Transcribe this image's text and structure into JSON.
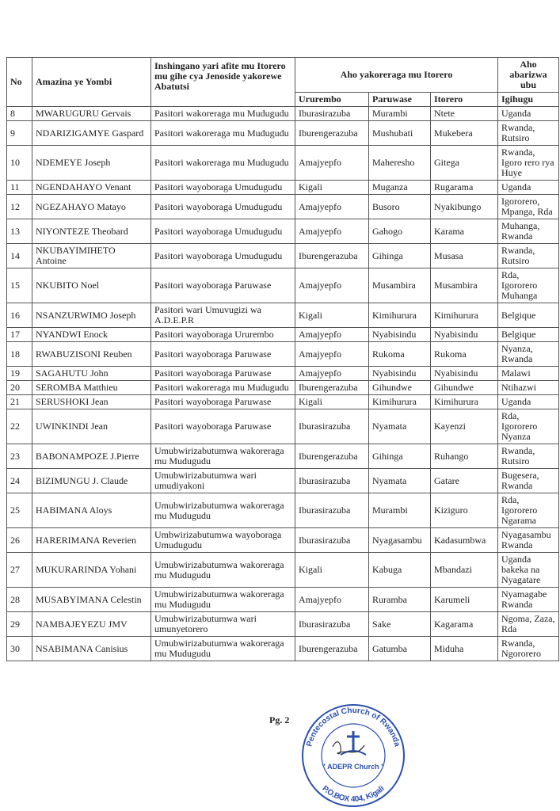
{
  "header": {
    "no": "No",
    "name": "Amazina ye Yombi",
    "role": "Inshingano yari afite mu Itorero mu gihe cya Jenoside yakorewe Abatutsi",
    "workplace": "Aho yakoreraga  mu Itorero",
    "location": "Aho abarizwa ubu",
    "region": "Ururembo",
    "parish": "Paruwase",
    "church": "Itorero",
    "country": "Igihugu"
  },
  "rows": [
    {
      "no": "8",
      "name": "MWARUGURU Gervais",
      "role": "Pasitori wakoreraga mu Mudugudu",
      "region": "Iburasirazuba",
      "parish": "Murambi",
      "church": "Ntete",
      "country": "Uganda"
    },
    {
      "no": "9",
      "name": "NDARIZIGAMYE Gaspard",
      "role": "Pasitori wakoreraga mu Mudugudu",
      "region": "Iburengerazuba",
      "parish": "Mushubati",
      "church": "Mukebera",
      "country": "Rwanda, Rutsiro"
    },
    {
      "no": "10",
      "name": "NDEMEYE Joseph",
      "role": "Pasitori wakoreraga mu Mudugudu",
      "region": "Amajyepfo",
      "parish": "Maheresho",
      "church": "Gitega",
      "country": "Rwanda, Igoro rero rya Huye"
    },
    {
      "no": "11",
      "name": "NGENDAHAYO Venant",
      "role": "Pasitori wayoboraga Umudugudu",
      "region": "Kigali",
      "parish": "Muganza",
      "church": "Rugarama",
      "country": "Uganda"
    },
    {
      "no": "12",
      "name": "NGEZAHAYO Matayo",
      "role": "Pasitori wayoboraga Umudugudu",
      "region": "Amajyepfo",
      "parish": "Busoro",
      "church": "Nyakibungo",
      "country": "Igororero, Mpanga, Rda"
    },
    {
      "no": "13",
      "name": "NIYONTEZE Theobard",
      "role": "Pasitori wayoboraga Umudugudu",
      "region": "Amajyepfo",
      "parish": "Gahogo",
      "church": "Karama",
      "country": "Muhanga, Rwanda"
    },
    {
      "no": "14",
      "name": "NKUBAYIMIHETO Antoine",
      "role": "Pasitori wayoboraga Umudugudu",
      "region": "Iburengerazuba",
      "parish": "Gihinga",
      "church": "Musasa",
      "country": "Rwanda, Rutsiro"
    },
    {
      "no": "15",
      "name": "NKUBITO Noel",
      "role": "Pasitori wayoboraga Paruwase",
      "region": "Amajyepfo",
      "parish": "Musambira",
      "church": "Musambira",
      "country": "Rda, Igororero Muhanga"
    },
    {
      "no": "16",
      "name": "NSANZURWIMO Joseph",
      "role": "Pasitori wari Umuvugizi wa A.D.E.P.R",
      "region": "Kigali",
      "parish": "Kimihurura",
      "church": "Kimihurura",
      "country": "Belgique"
    },
    {
      "no": "17",
      "name": "NYANDWI Enock",
      "role": "Pasitori wayoboraga Ururembo",
      "region": "Amajyepfo",
      "parish": "Nyabisindu",
      "church": "Nyabisindu",
      "country": "Belgique"
    },
    {
      "no": "18",
      "name": "RWABUZISONI Reuben",
      "role": "Pasitori wayoboraga Paruwase",
      "region": "Amajyepfo",
      "parish": "Rukoma",
      "church": "Rukoma",
      "country": "Nyanza, Rwanda"
    },
    {
      "no": "19",
      "name": "SAGAHUTU John",
      "role": "Pasitori wayoboraga Paruwase",
      "region": "Amajyepfo",
      "parish": "Nyabisindu",
      "church": "Nyabisindu",
      "country": "Malawi"
    },
    {
      "no": "20",
      "name": "SEROMBA Matthieu",
      "role": "Pasitori wakoreraga mu Mudugudu",
      "region": "Iburengerazuba",
      "parish": "Gihundwe",
      "church": "Gihundwe",
      "country": "Ntihazwi"
    },
    {
      "no": "21",
      "name": "SERUSHOKI Jean",
      "role": "Pasitori wayoboraga Paruwase",
      "region": "Kigali",
      "parish": "Kimihurura",
      "church": "Kimihurura",
      "country": "Uganda"
    },
    {
      "no": "22",
      "name": "UWINKINDI Jean",
      "role": "Pasitori wayoboraga Paruwase",
      "region": "Iburasirazuba",
      "parish": "Nyamata",
      "church": "Kayenzi",
      "country": "Rda, Igororero Nyanza"
    },
    {
      "no": "23",
      "name": "BABONAMPOZE J.Pierre",
      "role": "Umubwirizabutumwa wakoreraga mu Mudugudu",
      "region": "Iburengerazuba",
      "parish": "Gihinga",
      "church": "Ruhango",
      "country": "Rwanda, Rutsiro"
    },
    {
      "no": "24",
      "name": "BIZIMUNGU J. Claude",
      "role": "Umubwirizabutumwa wari umudiyakoni",
      "region": "Iburasirazuba",
      "parish": "Nyamata",
      "church": "Gatare",
      "country": "Bugesera, Rwanda"
    },
    {
      "no": "25",
      "name": "HABIMANA Aloys",
      "role": "Umubwirizabutumwa wakoreraga mu Mudugudu",
      "region": "Iburasirazuba",
      "parish": "Murambi",
      "church": "Kiziguro",
      "country": "Rda, Igororero Ngarama"
    },
    {
      "no": "26",
      "name": "HARERIMANA Reverien",
      "role": "Umbwirizabutumwa wayoboraga Umudugudu",
      "region": "Iburasirazuba",
      "parish": "Nyagasambu",
      "church": "Kadasumbwa",
      "country": "Nyagasambu Rwanda"
    },
    {
      "no": "27",
      "name": "MUKURARINDA Yohani",
      "role": "Umubwirizabutumwa wakoreraga mu Mudugudu",
      "region": "Kigali",
      "parish": "Kabuga",
      "church": "Mbandazi",
      "country": "Uganda bakeka na Nyagatare"
    },
    {
      "no": "28",
      "name": "MUSABYIMANA Celestin",
      "role": "Umubwirizabutumwa wakoreraga mu Mudugudu",
      "region": "Amajyepfo",
      "parish": "Ruramba",
      "church": "Karumeli",
      "country": "Nyamagabe Rwanda"
    },
    {
      "no": "29",
      "name": "NAMBAJEYEZU JMV",
      "role": "Umubwirizabutumwa wari umunyetorero",
      "region": "Iburasirazuba",
      "parish": "Sake",
      "church": "Kagarama",
      "country": "Ngoma, Zaza, Rda"
    },
    {
      "no": "30",
      "name": "NSABIMANA Canisius",
      "role": "Umubwirizabutumwa wakoreraga mu Mudugudu",
      "region": "Iburengerazuba",
      "parish": "Gatumba",
      "church": "Miduha",
      "country": "Rwanda, Ngororero"
    }
  ],
  "footer": {
    "page": "Pg. 2"
  },
  "stamp": {
    "top": "Pentecostal Church of Rwanda",
    "middle": "\" ADEPR Church \"",
    "bottom": "P.O.BOX 404, Kigali",
    "color": "#2a4fb0"
  }
}
